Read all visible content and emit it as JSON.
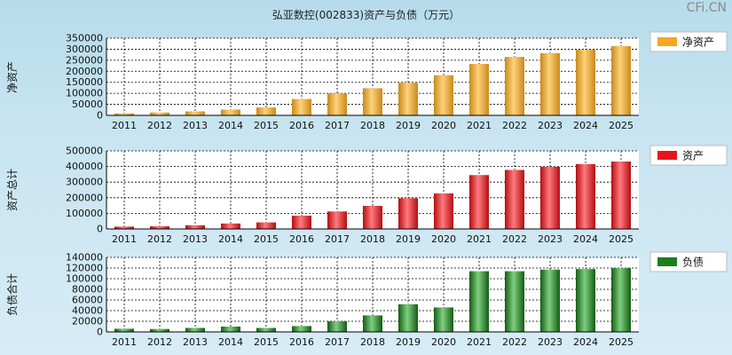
{
  "title": "弘亚数控(002833)资产与负债（万元）",
  "watermark": "CFi.CN",
  "chart_data": [
    {
      "type": "bar",
      "name": "net-assets",
      "ylabel": "净资产",
      "legend": "净资产",
      "legend_placement": "right",
      "color": "#f5a623",
      "categories": [
        "2011",
        "2012",
        "2013",
        "2014",
        "2015",
        "2016",
        "2017",
        "2018",
        "2019",
        "2020",
        "2021",
        "2022",
        "2023",
        "2024",
        "2025"
      ],
      "values": [
        9000,
        13000,
        18000,
        26000,
        36000,
        74000,
        100000,
        123000,
        148000,
        182000,
        233000,
        265000,
        282000,
        298000,
        314000
      ],
      "ylim": [
        0,
        350000
      ],
      "yticks": [
        0,
        50000,
        100000,
        150000,
        200000,
        250000,
        300000,
        350000
      ],
      "ytick_labels": [
        "0",
        "50000",
        "100000",
        "150000",
        "200000",
        "250000",
        "300000",
        "350000"
      ],
      "grid": true
    },
    {
      "type": "bar",
      "name": "total-assets",
      "ylabel": "资产总计",
      "legend": "资产",
      "legend_placement": "right",
      "color": "#e8141c",
      "categories": [
        "2011",
        "2012",
        "2013",
        "2014",
        "2015",
        "2016",
        "2017",
        "2018",
        "2019",
        "2020",
        "2021",
        "2022",
        "2023",
        "2024",
        "2025"
      ],
      "values": [
        15000,
        17000,
        24000,
        35000,
        42000,
        85000,
        112000,
        148000,
        197000,
        228000,
        345000,
        378000,
        398000,
        415000,
        432000
      ],
      "ylim": [
        0,
        500000
      ],
      "yticks": [
        0,
        100000,
        200000,
        300000,
        400000,
        500000
      ],
      "ytick_labels": [
        "0",
        "100000",
        "200000",
        "300000",
        "400000",
        "500000"
      ],
      "grid": true
    },
    {
      "type": "bar",
      "name": "liabilities",
      "ylabel": "负债合计",
      "legend": "负债",
      "legend_placement": "right",
      "color": "#1e7d1e",
      "categories": [
        "2011",
        "2012",
        "2013",
        "2014",
        "2015",
        "2016",
        "2017",
        "2018",
        "2019",
        "2020",
        "2021",
        "2022",
        "2023",
        "2024",
        "2025"
      ],
      "values": [
        6000,
        5500,
        7500,
        10000,
        7500,
        11000,
        20000,
        31000,
        52000,
        46000,
        114000,
        114000,
        117000,
        118000,
        120000
      ],
      "ylim": [
        0,
        140000
      ],
      "yticks": [
        0,
        20000,
        40000,
        60000,
        80000,
        100000,
        120000,
        140000
      ],
      "ytick_labels": [
        "0",
        "20000",
        "40000",
        "60000",
        "80000",
        "100000",
        "120000",
        "140000"
      ],
      "grid": true
    }
  ]
}
